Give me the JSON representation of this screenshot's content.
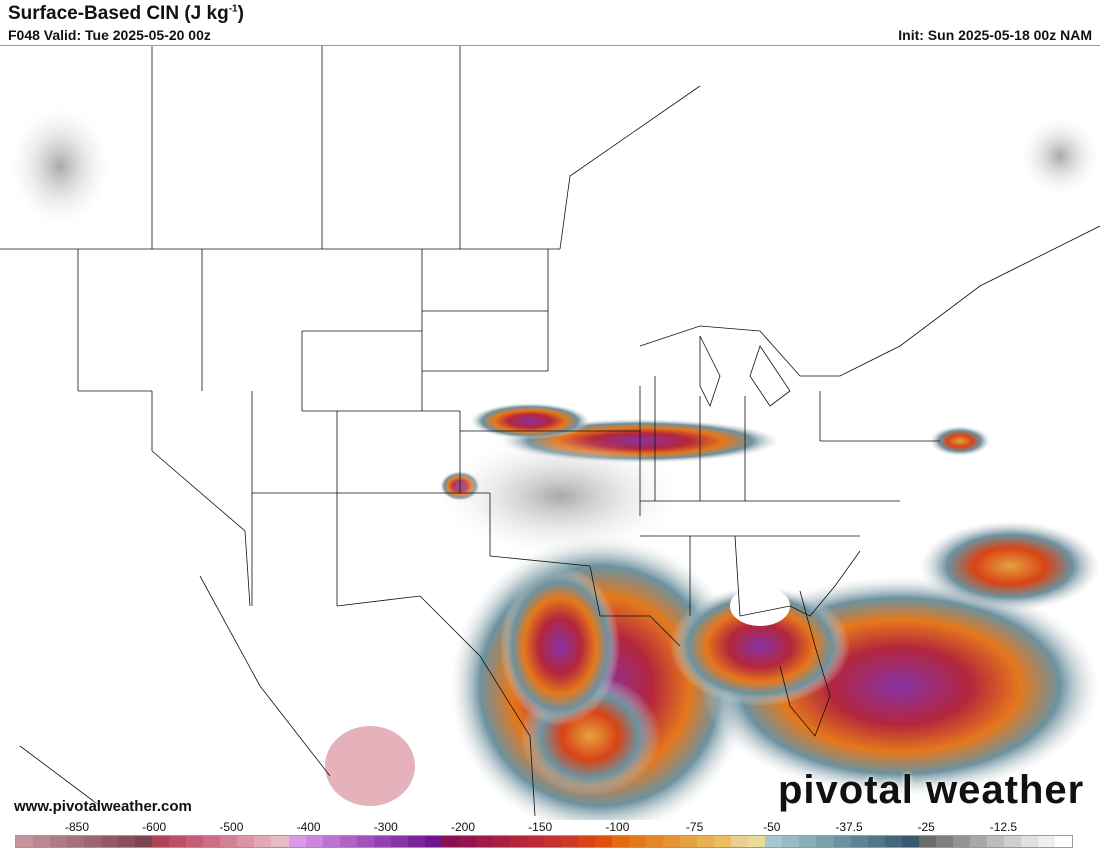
{
  "header": {
    "title": "Surface-Based CIN (J kg",
    "title_sup": "-1",
    "title_end": ")",
    "valid": "F048 Valid: Tue 2025-05-20 00z",
    "init": "Init: Sun 2025-05-18 00z NAM"
  },
  "footer": {
    "website": "www.pivotalweather.com",
    "watermark": "pivotal weather"
  },
  "colorbar": {
    "labels": [
      "-850",
      "-600",
      "-500",
      "-400",
      "-300",
      "-200",
      "-150",
      "-100",
      "-75",
      "-50",
      "-37.5",
      "-25",
      "-12.5"
    ],
    "colors": [
      "#c4949a",
      "#b98890",
      "#ae7c85",
      "#a5717b",
      "#9b6671",
      "#915a66",
      "#884f5c",
      "#7f4452",
      "#b04458",
      "#bb5068",
      "#c45f77",
      "#cc6f85",
      "#d48193",
      "#db94a3",
      "#e2a8b3",
      "#e9bcc4",
      "#d99be6",
      "#cc87dc",
      "#be73d1",
      "#b062c7",
      "#a252bc",
      "#9542b0",
      "#8733a5",
      "#7a2499",
      "#6d168e",
      "#8a1054",
      "#96144e",
      "#a11a48",
      "#ab2042",
      "#b4263c",
      "#bd2c36",
      "#c53330",
      "#cd3a2a",
      "#d84416",
      "#e0500e",
      "#e46a10",
      "#e5781c",
      "#e58628",
      "#e59434",
      "#e6a240",
      "#e8b050",
      "#eabe60",
      "#e8d090",
      "#e9dc98",
      "#a5c8ce",
      "#97bcc4",
      "#88aeb8",
      "#7aa0ac",
      "#6c92a0",
      "#5e8494",
      "#507688",
      "#42687c",
      "#3a5a70",
      "#6a6a6a",
      "#7f7f7f",
      "#949494",
      "#a8a8a8",
      "#bcbcbc",
      "#cfcfcf",
      "#e0e0e0",
      "#eeeeee",
      "#ffffff"
    ]
  }
}
